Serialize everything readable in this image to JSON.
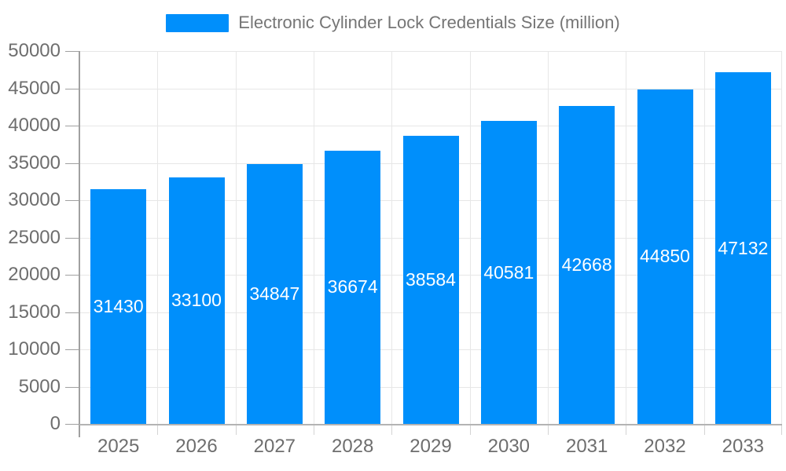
{
  "chart_data": {
    "type": "bar",
    "title": "Electronic Cylinder Lock Credentials Size (million)",
    "categories": [
      "2025",
      "2026",
      "2027",
      "2028",
      "2029",
      "2030",
      "2031",
      "2032",
      "2033"
    ],
    "values": [
      31430,
      33100,
      34847,
      36674,
      38584,
      40581,
      42668,
      44850,
      47132
    ],
    "xlabel": "",
    "ylabel": "",
    "ylim": [
      0,
      50000
    ],
    "ytick_step": 5000,
    "grid": true,
    "legend_position": "top",
    "colors": {
      "bar": "#008FFB",
      "value_label": "#ffffff",
      "axis_label": "#6e6e6e",
      "legend_text": "#757575",
      "grid_line": "#e7e7e7",
      "axis_line": "#b3b3b3",
      "y_axis_line": "#a0a0a0",
      "tick": "#d4d4d4"
    }
  }
}
